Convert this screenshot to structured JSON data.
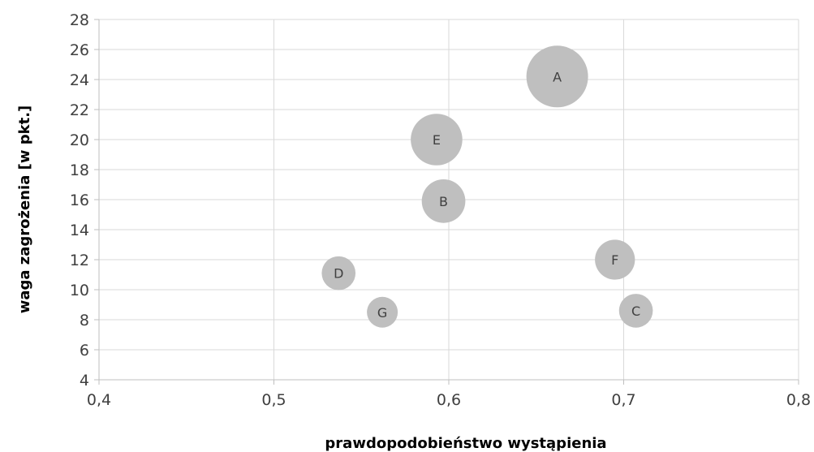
{
  "chart_data": {
    "type": "bubble",
    "title": "",
    "xlabel": "prawdopodobieństwo wystąpienia",
    "ylabel": "waga zagrożenia [w pkt.]",
    "xlim": [
      0.4,
      0.8
    ],
    "ylim": [
      4,
      28
    ],
    "x_ticks": [
      0.4,
      0.5,
      0.6,
      0.7,
      0.8
    ],
    "x_tick_labels": [
      "0,4",
      "0,5",
      "0,6",
      "0,7",
      "0,8"
    ],
    "y_ticks": [
      4,
      6,
      8,
      10,
      12,
      14,
      16,
      18,
      20,
      22,
      24,
      26,
      28
    ],
    "y_tick_labels": [
      "4",
      "6",
      "8",
      "10",
      "12",
      "14",
      "16",
      "18",
      "20",
      "22",
      "24",
      "26",
      "28"
    ],
    "grid": true,
    "legend": "none",
    "bubble_color": "#bfbfbf",
    "grid_color": "#d9d9d9",
    "points": [
      {
        "label": "A",
        "x": 0.662,
        "y": 24.2,
        "size": 1.0
      },
      {
        "label": "E",
        "x": 0.593,
        "y": 20.0,
        "size": 0.7
      },
      {
        "label": "B",
        "x": 0.597,
        "y": 15.9,
        "size": 0.5
      },
      {
        "label": "F",
        "x": 0.695,
        "y": 12.0,
        "size": 0.42
      },
      {
        "label": "D",
        "x": 0.537,
        "y": 11.1,
        "size": 0.3
      },
      {
        "label": "G",
        "x": 0.562,
        "y": 8.5,
        "size": 0.25
      },
      {
        "label": "C",
        "x": 0.707,
        "y": 8.6,
        "size": 0.3
      }
    ]
  }
}
